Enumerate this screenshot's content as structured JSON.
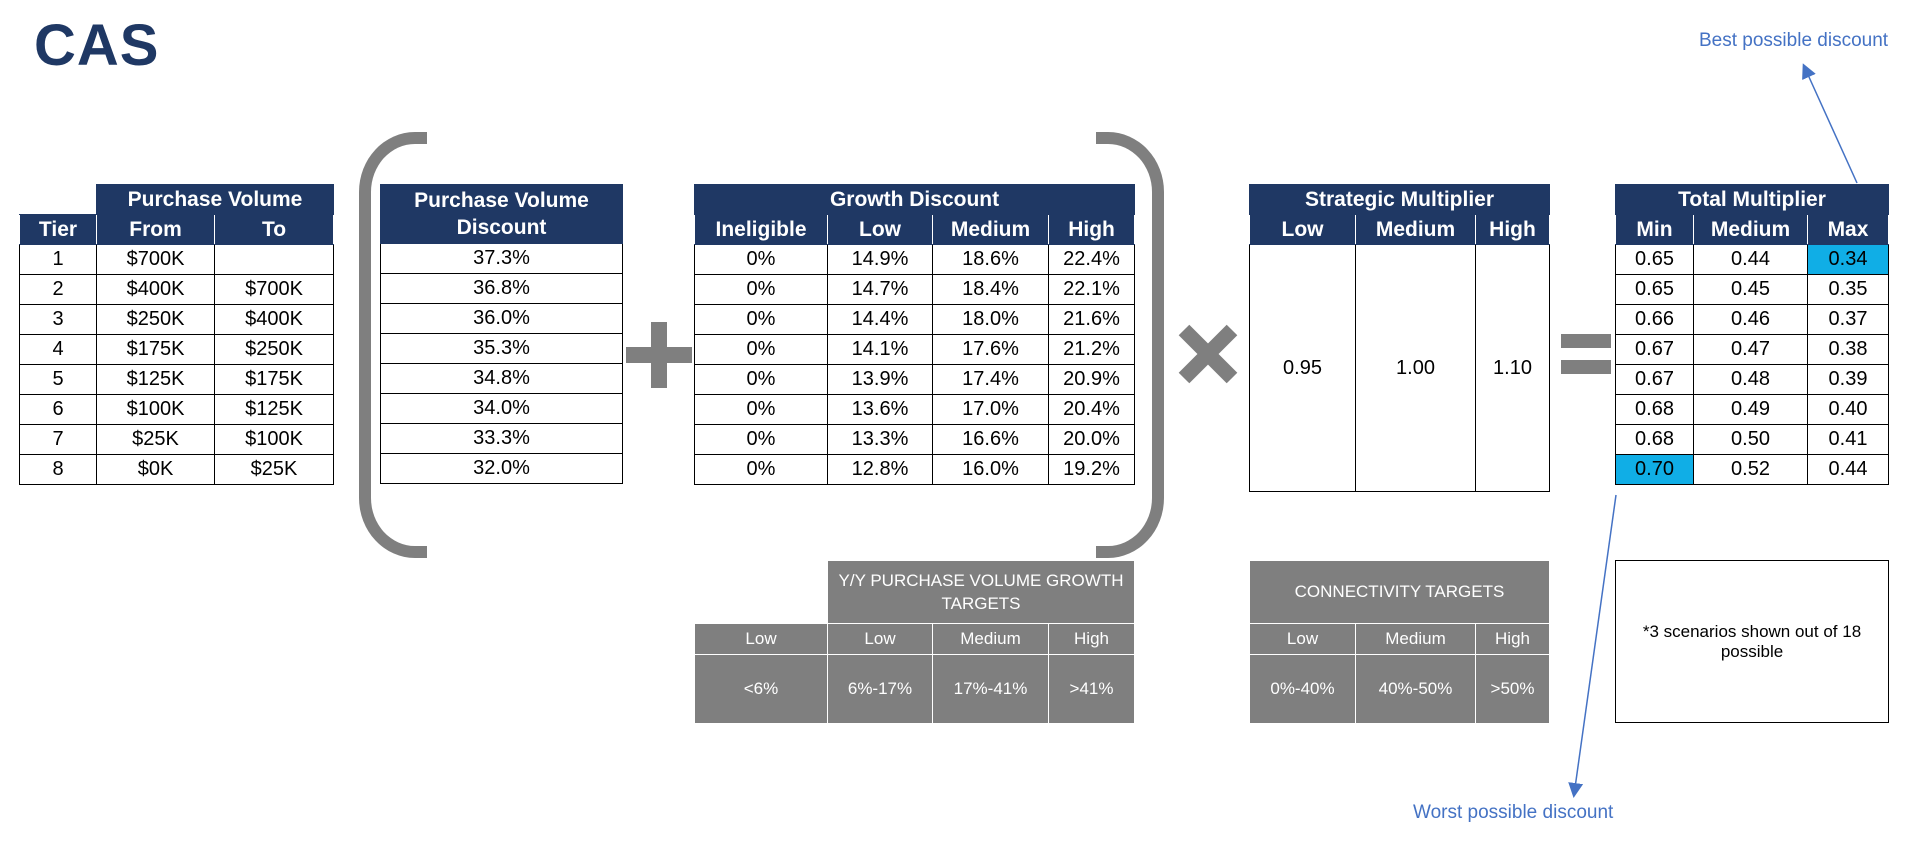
{
  "title": "CAS",
  "purchase_volume": {
    "group_header": "Purchase Volume",
    "columns": [
      "Tier",
      "From",
      "To"
    ],
    "rows": [
      {
        "tier": "1",
        "from": "$700K",
        "to": ""
      },
      {
        "tier": "2",
        "from": "$400K",
        "to": "$700K"
      },
      {
        "tier": "3",
        "from": "$250K",
        "to": "$400K"
      },
      {
        "tier": "4",
        "from": "$175K",
        "to": "$250K"
      },
      {
        "tier": "5",
        "from": "$125K",
        "to": "$175K"
      },
      {
        "tier": "6",
        "from": "$100K",
        "to": "$125K"
      },
      {
        "tier": "7",
        "from": "$25K",
        "to": "$100K"
      },
      {
        "tier": "8",
        "from": "$0K",
        "to": "$25K"
      }
    ]
  },
  "pv_discount": {
    "header_line1": "Purchase Volume",
    "header_line2": "Discount",
    "values": [
      "37.3%",
      "36.8%",
      "36.0%",
      "35.3%",
      "34.8%",
      "34.0%",
      "33.3%",
      "32.0%"
    ]
  },
  "growth_discount": {
    "group_header": "Growth Discount",
    "columns": [
      "Ineligible",
      "Low",
      "Medium",
      "High"
    ],
    "rows": [
      [
        "0%",
        "14.9%",
        "18.6%",
        "22.4%"
      ],
      [
        "0%",
        "14.7%",
        "18.4%",
        "22.1%"
      ],
      [
        "0%",
        "14.4%",
        "18.0%",
        "21.6%"
      ],
      [
        "0%",
        "14.1%",
        "17.6%",
        "21.2%"
      ],
      [
        "0%",
        "13.9%",
        "17.4%",
        "20.9%"
      ],
      [
        "0%",
        "13.6%",
        "17.0%",
        "20.4%"
      ],
      [
        "0%",
        "13.3%",
        "16.6%",
        "20.0%"
      ],
      [
        "0%",
        "12.8%",
        "16.0%",
        "19.2%"
      ]
    ]
  },
  "strategic_multiplier": {
    "group_header": "Strategic Multiplier",
    "columns": [
      "Low",
      "Medium",
      "High"
    ],
    "values": [
      "0.95",
      "1.00",
      "1.10"
    ]
  },
  "total_multiplier": {
    "group_header": "Total Multiplier",
    "columns": [
      "Min",
      "Medium",
      "Max"
    ],
    "rows": [
      [
        "0.65",
        "0.44",
        "0.34"
      ],
      [
        "0.65",
        "0.45",
        "0.35"
      ],
      [
        "0.66",
        "0.46",
        "0.37"
      ],
      [
        "0.67",
        "0.47",
        "0.38"
      ],
      [
        "0.67",
        "0.48",
        "0.39"
      ],
      [
        "0.68",
        "0.49",
        "0.40"
      ],
      [
        "0.68",
        "0.50",
        "0.41"
      ],
      [
        "0.70",
        "0.52",
        "0.44"
      ]
    ],
    "highlight_color": "#10aee6"
  },
  "growth_targets": {
    "header": "Y/Y PURCHASE VOLUME GROWTH TARGETS",
    "columns": [
      "Low",
      "Low",
      "Medium",
      "High"
    ],
    "values": [
      "<6%",
      "6%-17%",
      "17%-41%",
      ">41%"
    ]
  },
  "connectivity_targets": {
    "header": "CONNECTIVITY TARGETS",
    "columns": [
      "Low",
      "Medium",
      "High"
    ],
    "values": [
      "0%-40%",
      "40%-50%",
      ">50%"
    ]
  },
  "note": "*3 scenarios shown out of 18 possible",
  "callouts": {
    "best": "Best possible discount",
    "worst": "Worst possible discount"
  },
  "colors": {
    "header_navy": "#1f3864",
    "operator_gray": "#7f7f7f",
    "callout_blue": "#4472c4",
    "highlight_cyan": "#10aee6"
  }
}
